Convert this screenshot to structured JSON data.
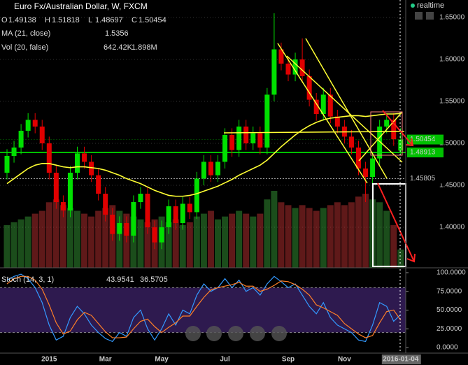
{
  "header": {
    "title": "Euro Fx/Australian Dollar, W, FXCM",
    "realtime": "realtime",
    "ohlc": [
      {
        "key": "O",
        "value": "1.49138"
      },
      {
        "key": "H",
        "value": "1.51818"
      },
      {
        "key": "L",
        "value": "1.48697"
      },
      {
        "key": "C",
        "value": "1.50454"
      }
    ],
    "ma_label": "MA (21, close)",
    "ma_value": "1.5356",
    "vol_label": "Vol (20, false)",
    "vol_values": [
      "642.42K",
      "1.898M"
    ],
    "stoch_label": "Stoch (14, 3, 1)",
    "stoch_values": [
      "43.9541",
      "36.5705"
    ]
  },
  "chart_data": [
    {
      "type": "candlestick",
      "categories": [
        null,
        null,
        null,
        null,
        null,
        null,
        "2015",
        null,
        null,
        null,
        null,
        null,
        null,
        null,
        "Mar",
        null,
        null,
        null,
        null,
        null,
        null,
        null,
        "May",
        null,
        null,
        null,
        null,
        null,
        null,
        null,
        null,
        "Jul",
        null,
        null,
        null,
        null,
        null,
        null,
        null,
        null,
        "Sep",
        null,
        null,
        null,
        null,
        null,
        null,
        null,
        "Nov",
        null,
        null,
        null,
        null,
        null,
        null,
        null,
        "2016-01-04"
      ],
      "open": [
        1.465,
        1.485,
        1.495,
        1.515,
        1.528,
        1.52,
        1.5,
        1.465,
        1.43,
        1.42,
        1.465,
        1.488,
        1.478,
        1.462,
        1.44,
        1.415,
        1.392,
        1.405,
        1.39,
        1.43,
        1.44,
        1.4,
        1.382,
        1.4,
        1.425,
        1.405,
        1.428,
        1.418,
        1.458,
        1.478,
        1.462,
        1.478,
        1.51,
        1.492,
        1.52,
        1.5,
        1.512,
        1.495,
        1.558,
        1.612,
        1.595,
        1.582,
        1.6,
        1.58,
        1.552,
        1.535,
        1.558,
        1.532,
        1.52,
        1.508,
        1.495,
        1.47,
        1.46,
        1.482,
        1.52,
        1.528,
        1.49138
      ],
      "high": [
        1.493,
        1.503,
        1.523,
        1.536,
        1.536,
        1.528,
        1.508,
        1.473,
        1.438,
        1.473,
        1.496,
        1.496,
        1.486,
        1.47,
        1.448,
        1.423,
        1.413,
        1.413,
        1.438,
        1.448,
        1.448,
        1.408,
        1.408,
        1.433,
        1.433,
        1.436,
        1.436,
        1.466,
        1.486,
        1.486,
        1.486,
        1.518,
        1.518,
        1.528,
        1.528,
        1.52,
        1.52,
        1.566,
        1.655,
        1.62,
        1.603,
        1.608,
        1.625,
        1.588,
        1.56,
        1.566,
        1.566,
        1.54,
        1.528,
        1.516,
        1.503,
        1.478,
        1.49,
        1.528,
        1.536,
        1.536,
        1.51818
      ],
      "low": [
        1.457,
        1.477,
        1.487,
        1.507,
        1.512,
        1.492,
        1.457,
        1.422,
        1.412,
        1.412,
        1.457,
        1.47,
        1.454,
        1.432,
        1.407,
        1.384,
        1.384,
        1.382,
        1.382,
        1.422,
        1.392,
        1.374,
        1.374,
        1.392,
        1.397,
        1.397,
        1.41,
        1.41,
        1.45,
        1.454,
        1.454,
        1.47,
        1.484,
        1.484,
        1.492,
        1.492,
        1.487,
        1.487,
        1.55,
        1.587,
        1.574,
        1.574,
        1.572,
        1.544,
        1.527,
        1.527,
        1.524,
        1.512,
        1.5,
        1.487,
        1.462,
        1.43,
        1.452,
        1.474,
        1.512,
        1.497,
        1.48697
      ],
      "close": [
        1.485,
        1.495,
        1.515,
        1.528,
        1.52,
        1.5,
        1.465,
        1.43,
        1.42,
        1.465,
        1.488,
        1.478,
        1.462,
        1.44,
        1.415,
        1.392,
        1.405,
        1.39,
        1.43,
        1.44,
        1.4,
        1.382,
        1.4,
        1.425,
        1.405,
        1.428,
        1.418,
        1.458,
        1.478,
        1.462,
        1.478,
        1.51,
        1.492,
        1.52,
        1.5,
        1.512,
        1.495,
        1.558,
        1.612,
        1.595,
        1.582,
        1.6,
        1.58,
        1.552,
        1.535,
        1.558,
        1.532,
        1.52,
        1.508,
        1.495,
        1.47,
        1.46,
        1.482,
        1.52,
        1.528,
        1.505,
        1.50454
      ],
      "up_color": "#00e000",
      "down_color": "#e00000",
      "ylim": [
        1.3517,
        1.6708
      ],
      "yticks": [
        {
          "value": 1.4,
          "label": "1.40000"
        },
        {
          "value": 1.45,
          "label": "1.45000"
        },
        {
          "value": 1.5,
          "label": "1.50000"
        },
        {
          "value": 1.55,
          "label": "1.55000"
        },
        {
          "value": 1.6,
          "label": "1.60000"
        },
        {
          "value": 1.65,
          "label": "1.65000"
        }
      ],
      "price_tags": [
        {
          "value": 1.50454,
          "label": "1.50454",
          "color": "#00c000"
        },
        {
          "value": 1.48913,
          "label": "1.48913",
          "color": "#00c000"
        },
        {
          "value": 1.45805,
          "label": "1.45805",
          "color": "#ffffff"
        }
      ],
      "series": [
        {
          "name": "MA (21, close)",
          "color": "#ffff33",
          "values": [
            1.452,
            1.458,
            1.464,
            1.47,
            1.474,
            1.476,
            1.476,
            1.474,
            1.472,
            1.471,
            1.472,
            1.472,
            1.471,
            1.47,
            1.468,
            1.465,
            1.462,
            1.458,
            1.455,
            1.452,
            1.448,
            1.444,
            1.441,
            1.438,
            1.437,
            1.437,
            1.438,
            1.44,
            1.443,
            1.446,
            1.449,
            1.453,
            1.457,
            1.462,
            1.466,
            1.47,
            1.474,
            1.48,
            1.488,
            1.496,
            1.503,
            1.51,
            1.516,
            1.521,
            1.525,
            1.528,
            1.53,
            1.531,
            1.532,
            1.533,
            1.533,
            1.532,
            1.533,
            1.534,
            1.535,
            1.535,
            1.5356
          ]
        }
      ],
      "volume": {
        "name": "Vol (20, false)",
        "ylim": [
          0,
          9400000
        ],
        "values": [
          1500000,
          1600000,
          1700000,
          1800000,
          1900000,
          2000000,
          2300000,
          2400000,
          2200000,
          2100000,
          2000000,
          1900000,
          1800000,
          2000000,
          2100000,
          2200000,
          2000000,
          1900000,
          1800000,
          1700000,
          1600000,
          1700000,
          1800000,
          1600000,
          1700000,
          1500000,
          1600000,
          1800000,
          1900000,
          2000000,
          1700000,
          1800000,
          1900000,
          2000000,
          1900000,
          1800000,
          1900000,
          2400000,
          2700000,
          2300000,
          2200000,
          2100000,
          2200000,
          2100000,
          2000000,
          2100000,
          2200000,
          2300000,
          2200000,
          2300000,
          2500000,
          2600000,
          2400000,
          2300000,
          2000000,
          1500000,
          642420
        ]
      }
    },
    {
      "type": "line",
      "title": "Stoch (14, 3, 1)",
      "ylim": [
        -7.5,
        106.5
      ],
      "yticks": [
        {
          "value": 0,
          "label": "0.0000"
        },
        {
          "value": 25,
          "label": "25.0000"
        },
        {
          "value": 50,
          "label": "50.0000"
        },
        {
          "value": 75,
          "label": "75.0000"
        },
        {
          "value": 100,
          "label": "100.0000"
        }
      ],
      "levels": [
        20,
        80
      ],
      "band_color": "#2e1a4f",
      "series": [
        {
          "name": "%K",
          "color": "#3399ff",
          "values": [
            90,
            95,
            98,
            92,
            80,
            60,
            30,
            10,
            15,
            40,
            55,
            45,
            30,
            20,
            12,
            8,
            20,
            15,
            40,
            50,
            25,
            10,
            25,
            45,
            30,
            50,
            45,
            70,
            85,
            75,
            80,
            92,
            80,
            90,
            75,
            80,
            70,
            85,
            95,
            88,
            80,
            85,
            70,
            55,
            45,
            60,
            40,
            30,
            25,
            20,
            10,
            8,
            30,
            60,
            55,
            35,
            43.9541
          ]
        },
        {
          "name": "%D",
          "color": "#ff7f27",
          "values": [
            85,
            92,
            95,
            95,
            90,
            78,
            57,
            33,
            18,
            22,
            37,
            47,
            43,
            32,
            21,
            13,
            13,
            14,
            25,
            35,
            38,
            28,
            20,
            27,
            33,
            42,
            42,
            55,
            67,
            77,
            80,
            82,
            84,
            87,
            82,
            82,
            75,
            78,
            83,
            89,
            88,
            84,
            78,
            70,
            57,
            53,
            48,
            43,
            32,
            25,
            18,
            13,
            16,
            33,
            48,
            50,
            36.5705
          ]
        }
      ]
    }
  ]
}
